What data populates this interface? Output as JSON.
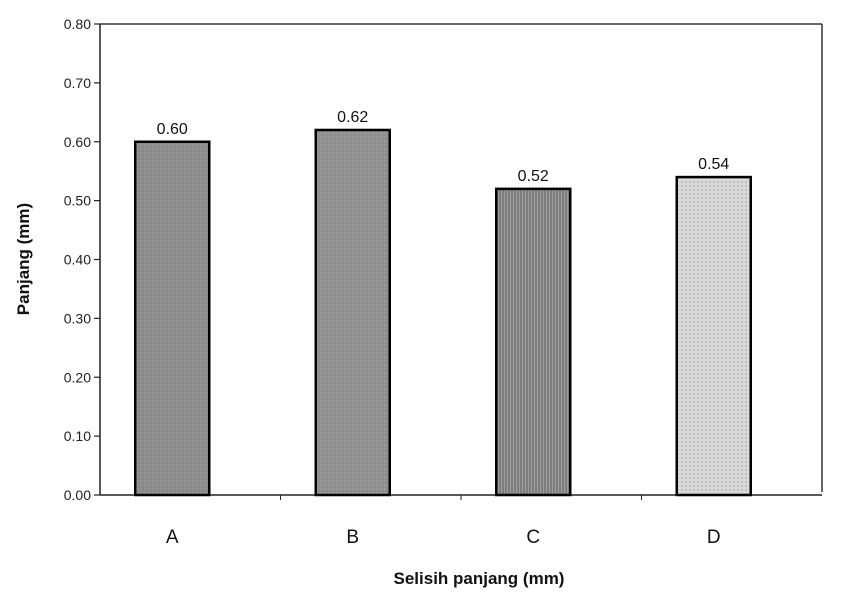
{
  "chart_data": {
    "type": "bar",
    "title": "",
    "xlabel": "Selisih panjang (mm)",
    "ylabel": "Panjang (mm)",
    "categories": [
      "A",
      "B",
      "C",
      "D"
    ],
    "values": [
      0.6,
      0.62,
      0.52,
      0.54
    ],
    "data_labels": [
      "0.60",
      "0.62",
      "0.52",
      "0.54"
    ],
    "ylim": [
      0,
      0.8
    ],
    "yticks": [
      0.0,
      0.1,
      0.2,
      0.3,
      0.4,
      0.5,
      0.6,
      0.7,
      0.8
    ],
    "ytick_labels": [
      "0.00",
      "0.10",
      "0.20",
      "0.30",
      "0.40",
      "0.50",
      "0.60",
      "0.70",
      "0.80"
    ],
    "grid": false,
    "legend": "none",
    "bar_colors": [
      "#8a8a8a",
      "#8f8f8f",
      "#7d7d7d",
      "#d9d9d9"
    ],
    "edge_color": "#000000"
  }
}
